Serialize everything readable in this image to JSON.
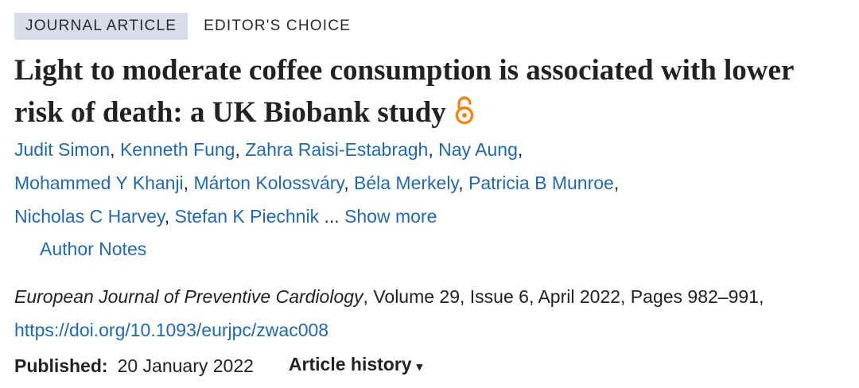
{
  "tags": {
    "primary": "Journal Article",
    "secondary": "Editor's Choice"
  },
  "article": {
    "title": "Light to moderate coffee consumption is associated with lower risk of death: a UK Biobank study",
    "open_access_icon": "open-access-lock-icon",
    "open_access_color": "#f68212"
  },
  "authors": {
    "list": [
      "Judit Simon",
      "Kenneth Fung",
      "Zahra Raisi-Estabragh",
      "Nay Aung",
      "Mohammed Y Khanji",
      "Márton Kolossváry",
      "Béla Merkely",
      "Patricia B Munroe",
      "Nicholas C Harvey",
      "Stefan K Piechnik"
    ],
    "separator": ", ",
    "ellipsis": " ... ",
    "show_more": "Show more",
    "author_notes": "Author Notes"
  },
  "citation": {
    "journal": "European Journal of Preventive Cardiology",
    "details": ", Volume 29, Issue 6, April 2022, Pages 982–991, ",
    "doi": "https://doi.org/10.1093/eurjpc/zwac008"
  },
  "published": {
    "label": "Published:",
    "date": "20 January 2022",
    "history_label": "Article history",
    "caret": "▾"
  },
  "colors": {
    "link": "#1f68b3",
    "tag_bg": "#d7dce8",
    "text": "#222222"
  }
}
